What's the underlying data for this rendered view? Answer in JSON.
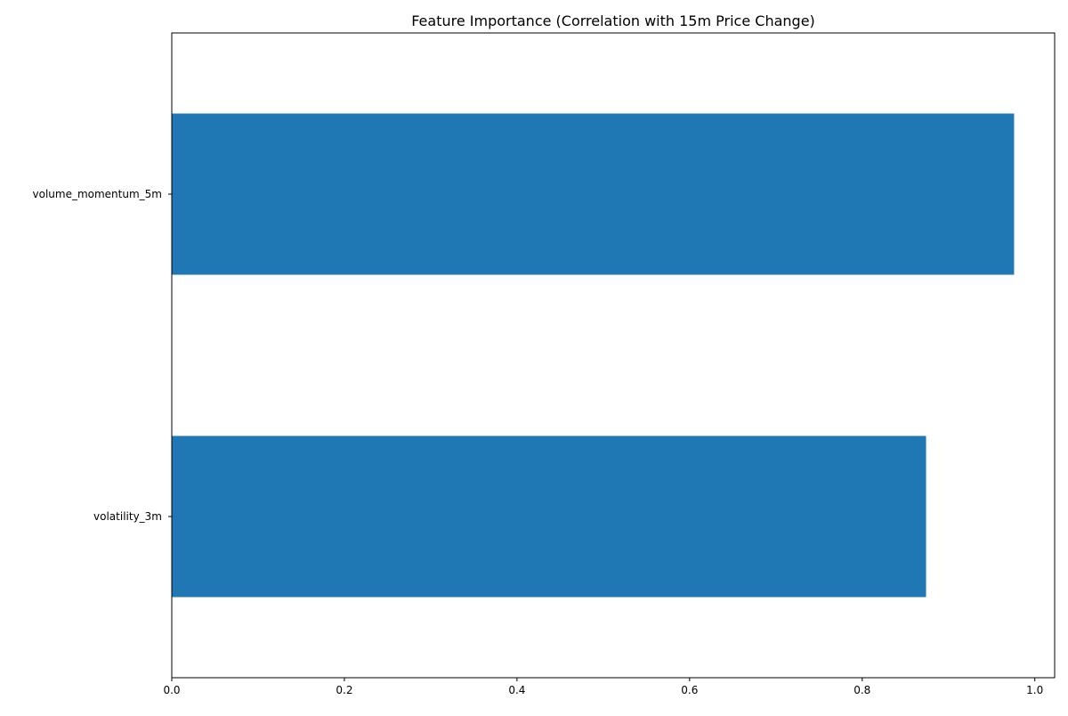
{
  "chart_data": {
    "type": "bar",
    "orientation": "horizontal",
    "title": "Feature Importance (Correlation with 15m Price Change)",
    "xlabel": "",
    "ylabel": "",
    "categories": [
      "volume_momentum_5m",
      "volatility_3m"
    ],
    "values": [
      0.976,
      0.874
    ],
    "xlim": [
      0.0,
      1.023
    ],
    "x_ticks": [
      0.0,
      0.2,
      0.4,
      0.6,
      0.8,
      1.0
    ],
    "x_tick_labels": [
      "0.0",
      "0.2",
      "0.4",
      "0.6",
      "0.8",
      "1.0"
    ],
    "grid": false,
    "legend": "none",
    "bar_color": "#1f77b4"
  }
}
